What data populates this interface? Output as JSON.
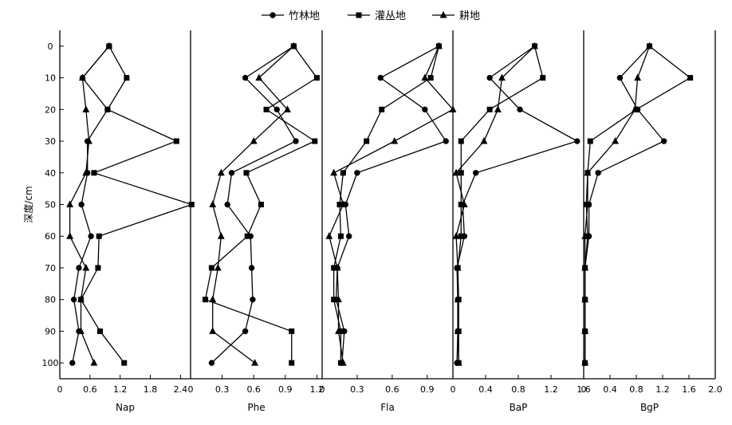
{
  "chart_data": {
    "type": "line",
    "legend": {
      "placement": "top-center",
      "entries": [
        {
          "name": "竹林地",
          "marker": "circle"
        },
        {
          "name": "灌丛地",
          "marker": "square"
        },
        {
          "name": "耕地",
          "marker": "triangle"
        }
      ]
    },
    "shared_y": {
      "label": "深度/cm",
      "ticks": [
        0,
        10,
        20,
        30,
        40,
        50,
        60,
        70,
        80,
        90,
        100
      ],
      "tick_labels": [
        "0",
        "10",
        "20",
        "30",
        "40",
        "50",
        "60",
        "70",
        "80",
        "90",
        "100"
      ],
      "range": [
        -5,
        105
      ],
      "inverted": true
    },
    "depths": [
      0,
      10,
      20,
      30,
      40,
      50,
      60,
      70,
      80,
      90,
      100
    ],
    "panels": [
      {
        "xlabel": "Nap",
        "xlim": [
          0,
          2.6
        ],
        "xticks": [
          0,
          0.6,
          1.2,
          1.8,
          2.4
        ],
        "xtick_labels": [
          "0",
          "0.6",
          "1.2",
          "1.8",
          "2.4"
        ],
        "series": [
          {
            "name": "竹林地",
            "values": [
              0.98,
              0.45,
              0.95,
              0.55,
              0.55,
              0.43,
              0.62,
              0.38,
              0.28,
              0.38,
              0.25
            ]
          },
          {
            "name": "灌丛地",
            "values": [
              0.98,
              1.33,
              0.95,
              2.32,
              0.68,
              2.62,
              0.78,
              0.76,
              0.42,
              0.8,
              1.28
            ]
          },
          {
            "name": "耕地",
            "values": [
              0.98,
              0.45,
              0.52,
              0.58,
              0.52,
              0.2,
              0.2,
              0.52,
              0.42,
              0.42,
              0.68
            ]
          }
        ]
      },
      {
        "xlabel": "Phe",
        "xlim": [
          0,
          1.25
        ],
        "xticks": [
          0,
          0.3,
          0.6,
          0.9,
          1.2
        ],
        "xtick_labels": [
          "0",
          "0.3",
          "0.6",
          "0.9",
          "1.2"
        ],
        "series": [
          {
            "name": "竹林地",
            "values": [
              0.98,
              0.52,
              0.82,
              1.0,
              0.39,
              0.35,
              0.57,
              0.58,
              0.59,
              0.52,
              0.2
            ]
          },
          {
            "name": "灌丛地",
            "values": [
              0.98,
              1.2,
              0.72,
              1.18,
              0.53,
              0.67,
              0.54,
              0.2,
              0.14,
              0.96,
              0.96
            ]
          },
          {
            "name": "耕地",
            "values": [
              0.98,
              0.65,
              0.92,
              0.6,
              0.29,
              0.21,
              0.29,
              0.26,
              0.21,
              0.21,
              0.61
            ]
          }
        ]
      },
      {
        "xlabel": "Fla",
        "xlim": [
          0,
          1.12
        ],
        "xticks": [
          0,
          0.3,
          0.6,
          0.9
        ],
        "xtick_labels": [
          "0",
          "0.3",
          "0.6",
          "0.9"
        ],
        "series": [
          {
            "name": "竹林地",
            "values": [
              1.0,
              0.5,
              0.88,
              1.06,
              0.3,
              0.2,
              0.23,
              0.13,
              0.12,
              0.19,
              0.17
            ]
          },
          {
            "name": "灌丛地",
            "values": [
              1.0,
              0.93,
              0.51,
              0.38,
              0.18,
              0.15,
              0.16,
              0.1,
              0.1,
              0.16,
              0.16
            ]
          },
          {
            "name": "耕地",
            "values": [
              1.0,
              0.88,
              1.12,
              0.62,
              0.1,
              0.18,
              0.06,
              0.13,
              0.14,
              0.14,
              0.18
            ]
          }
        ]
      },
      {
        "xlabel": "BaP",
        "xlim": [
          0,
          1.6
        ],
        "xticks": [
          0,
          0.4,
          0.8,
          1.2,
          1.6
        ],
        "xtick_labels": [
          "0",
          "0.4",
          "0.8",
          "1.2",
          "1.6"
        ],
        "series": [
          {
            "name": "竹林地",
            "values": [
              1.0,
              0.45,
              0.82,
              1.52,
              0.28,
              0.12,
              0.14,
              0.05,
              0.06,
              0.06,
              0.05
            ]
          },
          {
            "name": "灌丛地",
            "values": [
              1.0,
              1.1,
              0.45,
              0.1,
              0.1,
              0.1,
              0.1,
              0.06,
              0.07,
              0.07,
              0.07
            ]
          },
          {
            "name": "耕地",
            "values": [
              1.0,
              0.6,
              0.55,
              0.38,
              0.04,
              0.14,
              0.04,
              0.06,
              0.06,
              0.06,
              0.07
            ]
          }
        ]
      },
      {
        "xlabel": "BgP",
        "xlim": [
          0,
          2.0
        ],
        "xticks": [
          0,
          0.4,
          0.8,
          1.2,
          1.6,
          2.0
        ],
        "xtick_labels": [
          "0",
          "0.4",
          "0.8",
          "1.2",
          "1.6",
          "2.0"
        ],
        "series": [
          {
            "name": "竹林地",
            "values": [
              1.0,
              0.55,
              0.82,
              1.22,
              0.22,
              0.08,
              0.08,
              0.02,
              0.02,
              0.02,
              0.02
            ]
          },
          {
            "name": "灌丛地",
            "values": [
              1.0,
              1.62,
              0.8,
              0.1,
              0.06,
              0.04,
              0.06,
              0.02,
              0.02,
              0.02,
              0.02
            ]
          },
          {
            "name": "耕地",
            "values": [
              1.0,
              0.82,
              0.78,
              0.48,
              0.06,
              0.06,
              0.02,
              0.02,
              0.02,
              0.02,
              0.02
            ]
          }
        ]
      }
    ]
  }
}
